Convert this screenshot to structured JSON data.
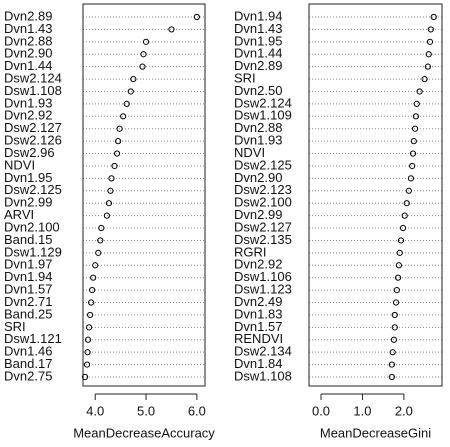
{
  "chart_data": [
    {
      "type": "dot",
      "xlabel": "MeanDecreaseAccuracy",
      "color": "#000000",
      "grid": true,
      "categories": [
        "Dvn2.89",
        "Dvn1.43",
        "Dvn2.88",
        "Dvn2.90",
        "Dvn1.44",
        "Dsw2.124",
        "Dsw1.108",
        "Dvn1.93",
        "Dvn2.92",
        "Dsw2.127",
        "Dsw2.126",
        "Dsw2.96",
        "NDVI",
        "Dvn1.95",
        "Dsw2.125",
        "Dvn2.99",
        "ARVI",
        "Dvn2.100",
        "Band.15",
        "Dsw1.129",
        "Dvn1.97",
        "Dvn1.94",
        "Dvn1.57",
        "Dvn2.71",
        "Band.25",
        "SRI",
        "Dsw1.121",
        "Dvn1.46",
        "Band.17",
        "Dvn2.75"
      ],
      "values": [
        6.0,
        5.5,
        5.0,
        4.95,
        4.93,
        4.75,
        4.7,
        4.62,
        4.55,
        4.48,
        4.45,
        4.43,
        4.38,
        4.32,
        4.3,
        4.27,
        4.23,
        4.12,
        4.1,
        4.06,
        4.0,
        3.96,
        3.94,
        3.92,
        3.9,
        3.88,
        3.86,
        3.85,
        3.84,
        3.8
      ],
      "xlim": [
        3.76,
        6.16
      ],
      "xticks": [
        {
          "value": 4,
          "label": "4.0"
        },
        {
          "value": 5,
          "label": "5.0"
        },
        {
          "value": 6,
          "label": "6.0"
        }
      ]
    },
    {
      "type": "dot",
      "xlabel": "MeanDecreaseGini",
      "color": "#000000",
      "grid": true,
      "categories": [
        "Dvn1.94",
        "Dvn1.43",
        "Dvn1.95",
        "Dvn1.44",
        "Dvn2.89",
        "SRI",
        "Dvn2.50",
        "Dsw2.124",
        "Dsw1.109",
        "Dvn2.88",
        "Dvn1.93",
        "NDVI",
        "Dsw2.125",
        "Dvn2.90",
        "Dsw2.123",
        "Dsw2.100",
        "Dvn2.99",
        "Dsw2.127",
        "Dsw2.135",
        "RGRI",
        "Dvn2.92",
        "Dsw1.106",
        "Dsw1.123",
        "Dvn2.49",
        "Dvn1.83",
        "Dvn1.57",
        "RENDVI",
        "Dsw2.134",
        "Dvn1.84",
        "Dsw1.108"
      ],
      "values": [
        2.72,
        2.65,
        2.63,
        2.6,
        2.58,
        2.5,
        2.38,
        2.31,
        2.29,
        2.27,
        2.24,
        2.22,
        2.2,
        2.17,
        2.12,
        2.07,
        2.02,
        1.98,
        1.93,
        1.9,
        1.88,
        1.86,
        1.83,
        1.81,
        1.78,
        1.78,
        1.76,
        1.73,
        1.71,
        1.71
      ],
      "xlim": [
        -0.29,
        2.92
      ],
      "xticks": [
        {
          "value": 0,
          "label": "0.0"
        },
        {
          "value": 1,
          "label": "1.0"
        },
        {
          "value": 2,
          "label": "2.0"
        }
      ]
    }
  ]
}
